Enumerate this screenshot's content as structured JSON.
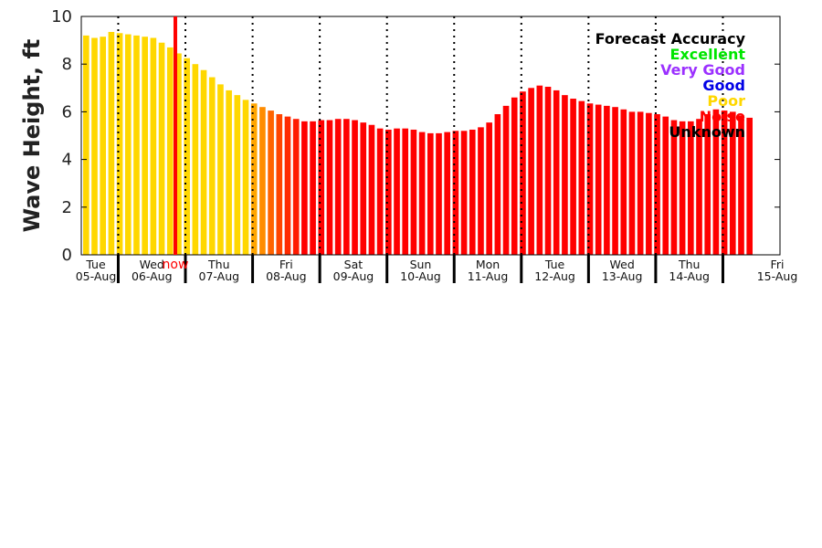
{
  "chart_data": {
    "type": "bar",
    "ylabel": "Wave Height, ft",
    "ylim": [
      0,
      10
    ],
    "yticks": [
      0,
      2,
      4,
      6,
      8,
      10
    ],
    "days": [
      {
        "dow": "Tue",
        "date": "05-Aug"
      },
      {
        "dow": "Wed",
        "date": "06-Aug"
      },
      {
        "dow": "Thu",
        "date": "07-Aug"
      },
      {
        "dow": "Fri",
        "date": "08-Aug"
      },
      {
        "dow": "Sat",
        "date": "09-Aug"
      },
      {
        "dow": "Sun",
        "date": "10-Aug"
      },
      {
        "dow": "Mon",
        "date": "11-Aug"
      },
      {
        "dow": "Tue",
        "date": "12-Aug"
      },
      {
        "dow": "Wed",
        "date": "13-Aug"
      },
      {
        "dow": "Thu",
        "date": "14-Aug"
      },
      {
        "dow": "Fri",
        "date": "15-Aug"
      }
    ],
    "bars_per_day": 8,
    "values": [
      9.2,
      9.1,
      9.15,
      9.35,
      9.3,
      9.25,
      9.2,
      9.15,
      9.1,
      8.9,
      8.7,
      8.45,
      8.25,
      8.0,
      7.75,
      7.45,
      7.15,
      6.9,
      6.7,
      6.5,
      6.35,
      6.2,
      6.05,
      5.9,
      5.8,
      5.7,
      5.6,
      5.6,
      5.65,
      5.65,
      5.7,
      5.7,
      5.65,
      5.55,
      5.45,
      5.3,
      5.25,
      5.3,
      5.3,
      5.25,
      5.15,
      5.1,
      5.1,
      5.15,
      5.2,
      5.2,
      5.25,
      5.35,
      5.55,
      5.9,
      6.25,
      6.6,
      6.85,
      7.0,
      7.1,
      7.05,
      6.9,
      6.7,
      6.55,
      6.45,
      6.35,
      6.3,
      6.25,
      6.2,
      6.1,
      6.0,
      6.0,
      5.95,
      5.9,
      5.8,
      5.65,
      5.6,
      5.6,
      5.7,
      5.9,
      6.1,
      6.05,
      6.0,
      5.85,
      5.75
    ],
    "bar_colors": [
      "#ffd700",
      "#ffd700",
      "#ffd700",
      "#ffd700",
      "#ffd700",
      "#ffd700",
      "#ffd700",
      "#ffd700",
      "#ffd700",
      "#ffd700",
      "#ffd700",
      "#ffd700",
      "#ffd700",
      "#ffd700",
      "#ffd700",
      "#ffd700",
      "#ffd700",
      "#ffd700",
      "#ffd700",
      "#ffd700",
      "#ffa500",
      "#ff8c00",
      "#ff6400",
      "#ff4500",
      "#ff2a00",
      "#ff1a00",
      "#ff0000",
      "#ff0000",
      "#ff0000",
      "#ff0000",
      "#ff0000",
      "#ff0000",
      "#ff0000",
      "#ff0000",
      "#ff0000",
      "#ff0000",
      "#ff0000",
      "#ff0000",
      "#ff0000",
      "#ff0000",
      "#ff0000",
      "#ff0000",
      "#ff0000",
      "#ff0000",
      "#ff0000",
      "#ff0000",
      "#ff0000",
      "#ff0000",
      "#ff0000",
      "#ff0000",
      "#ff0000",
      "#ff0000",
      "#ff0000",
      "#ff0000",
      "#ff0000",
      "#ff0000",
      "#ff0000",
      "#ff0000",
      "#ff0000",
      "#ff0000",
      "#ff0000",
      "#ff0000",
      "#ff0000",
      "#ff0000",
      "#ff0000",
      "#ff0000",
      "#ff0000",
      "#ff0000",
      "#ff0000",
      "#ff0000",
      "#ff0000",
      "#ff0000",
      "#ff0000",
      "#ff0000",
      "#ff0000",
      "#ff0000",
      "#ff0000",
      "#ff0000",
      "#ff0000",
      "#ff0000"
    ],
    "now_marker": {
      "label": "now",
      "color": "#ff0000",
      "day_fraction": 1.85
    },
    "grid": "dotted vertical lines at day boundaries",
    "legend": {
      "title": "Forecast Accuracy",
      "placement": "top-right",
      "entries": [
        {
          "label": "Excellent",
          "color": "#00e600"
        },
        {
          "label": "Very Good",
          "color": "#9b30ff"
        },
        {
          "label": "Good",
          "color": "#0000e6"
        },
        {
          "label": "Poor",
          "color": "#ffd700"
        },
        {
          "label": "Noise",
          "color": "#ff0000"
        },
        {
          "label": "Unknown",
          "color": "#000000"
        }
      ]
    }
  }
}
